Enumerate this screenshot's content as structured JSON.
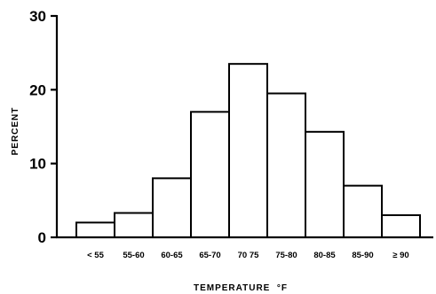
{
  "chart_data": {
    "type": "bar",
    "xlabel": "TEMPERATURE  °F",
    "ylabel": "PERCENT",
    "ylim": [
      0,
      30
    ],
    "yticks": [
      "0",
      "10",
      "20",
      "30"
    ],
    "categories": [
      "< 55",
      "55-60",
      "60-65",
      "65-70",
      "70 75",
      "75-80",
      "80-85",
      "85-90",
      "≥ 90"
    ],
    "values": [
      2,
      3.3,
      8,
      17,
      23.5,
      19.5,
      14.3,
      7,
      3
    ],
    "grid": false,
    "legend": "none"
  }
}
